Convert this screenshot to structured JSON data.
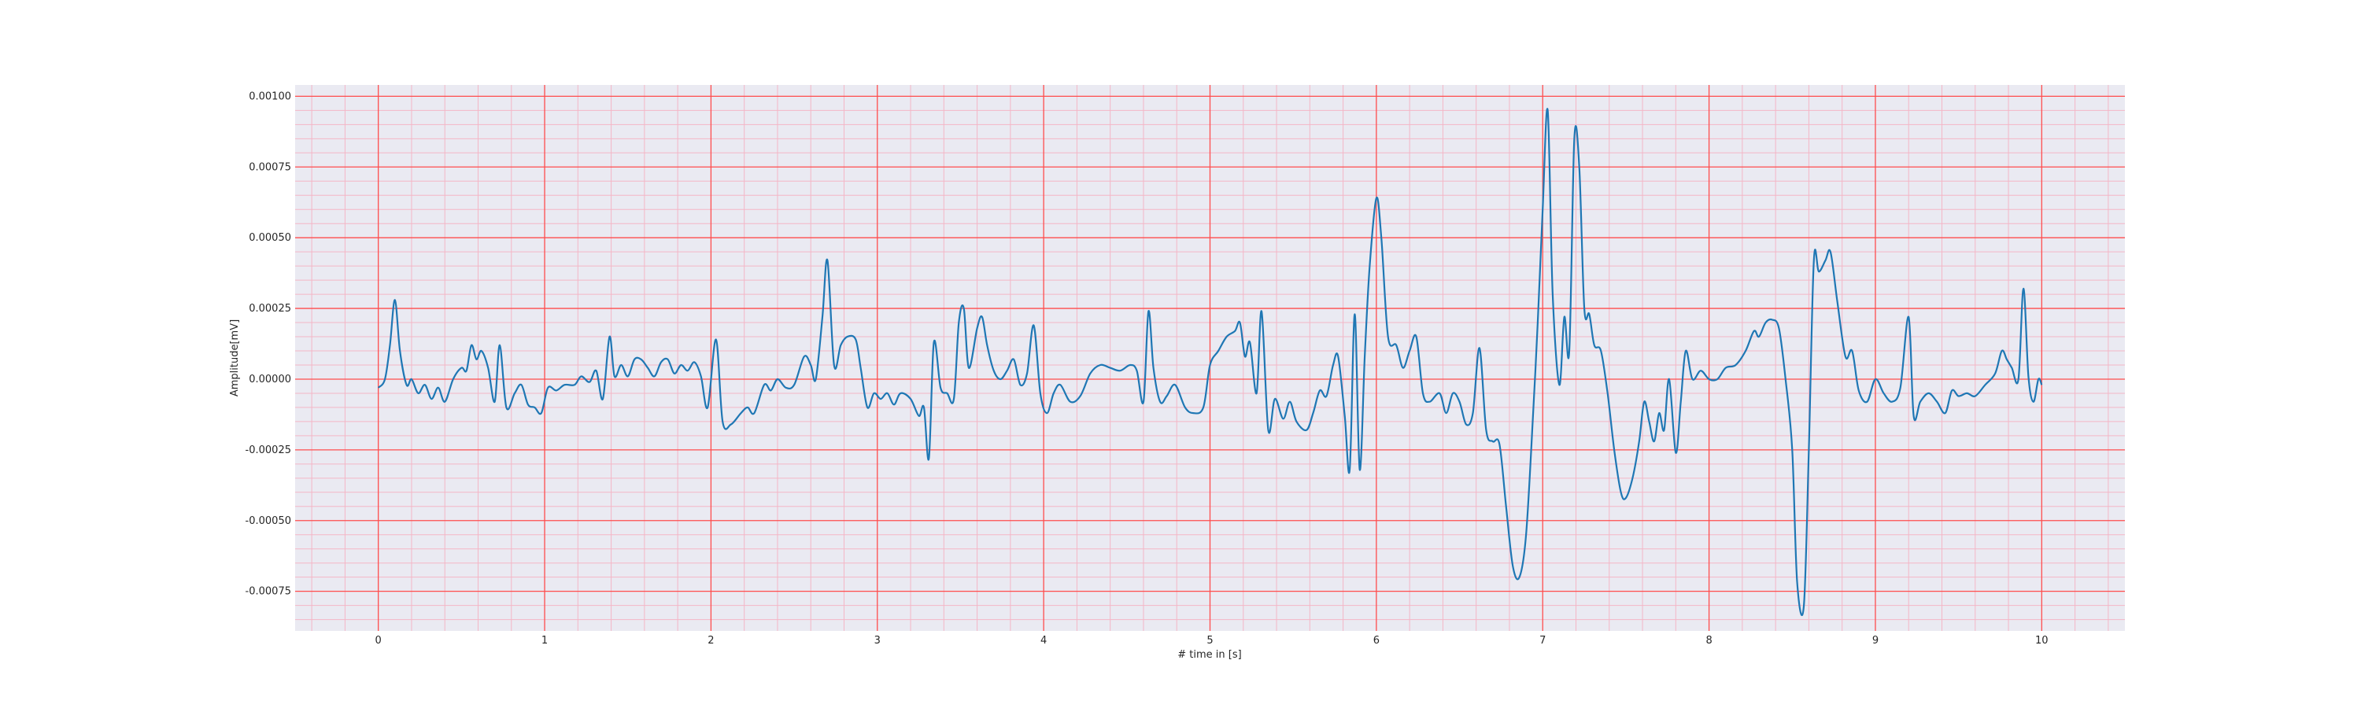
{
  "chart_data": {
    "type": "line",
    "title": "",
    "xlabel": "# time in [s]",
    "ylabel": "Amplitude[mV]",
    "xlim": [
      -0.5,
      10.5
    ],
    "ylim": [
      -0.00089,
      0.00104
    ],
    "x_ticks": [
      0,
      1,
      2,
      3,
      4,
      5,
      6,
      7,
      8,
      9,
      10
    ],
    "x_tick_labels": [
      "0",
      "1",
      "2",
      "3",
      "4",
      "5",
      "6",
      "7",
      "8",
      "9",
      "10"
    ],
    "y_ticks": [
      -0.00075,
      -0.0005,
      -0.00025,
      0.0,
      0.00025,
      0.0005,
      0.00075,
      0.001
    ],
    "y_tick_labels": [
      "-0.00075",
      "-0.00050",
      "-0.00025",
      "0.00000",
      "0.00025",
      "0.00050",
      "0.00075",
      "0.00100"
    ],
    "grid": {
      "major": true,
      "minor": true,
      "major_color": "#ff4d4d",
      "minor_color": "#f4b6c6"
    },
    "background": "#eaeaf2",
    "series": [
      {
        "color": "#1f77b4",
        "points": [
          [
            0.0,
            -3e-05
          ],
          [
            0.04,
            0.0
          ],
          [
            0.07,
            0.00012
          ],
          [
            0.1,
            0.00028
          ],
          [
            0.13,
            0.0001
          ],
          [
            0.17,
            -2e-05
          ],
          [
            0.2,
            0.0
          ],
          [
            0.24,
            -5e-05
          ],
          [
            0.28,
            -2e-05
          ],
          [
            0.32,
            -7e-05
          ],
          [
            0.36,
            -3e-05
          ],
          [
            0.4,
            -8e-05
          ],
          [
            0.45,
            0.0
          ],
          [
            0.5,
            4e-05
          ],
          [
            0.53,
            3e-05
          ],
          [
            0.56,
            0.00012
          ],
          [
            0.59,
            7e-05
          ],
          [
            0.62,
            0.0001
          ],
          [
            0.66,
            4e-05
          ],
          [
            0.7,
            -8e-05
          ],
          [
            0.73,
            0.00012
          ],
          [
            0.77,
            -0.0001
          ],
          [
            0.82,
            -5e-05
          ],
          [
            0.86,
            -2e-05
          ],
          [
            0.9,
            -9e-05
          ],
          [
            0.94,
            -0.0001
          ],
          [
            0.98,
            -0.00012
          ],
          [
            1.02,
            -3e-05
          ],
          [
            1.07,
            -4e-05
          ],
          [
            1.12,
            -2e-05
          ],
          [
            1.18,
            -2e-05
          ],
          [
            1.22,
            1e-05
          ],
          [
            1.27,
            -1e-05
          ],
          [
            1.31,
            3e-05
          ],
          [
            1.35,
            -7e-05
          ],
          [
            1.39,
            0.00015
          ],
          [
            1.42,
            1e-05
          ],
          [
            1.46,
            5e-05
          ],
          [
            1.5,
            1e-05
          ],
          [
            1.54,
            7e-05
          ],
          [
            1.58,
            7e-05
          ],
          [
            1.62,
            4e-05
          ],
          [
            1.66,
            1e-05
          ],
          [
            1.7,
            6e-05
          ],
          [
            1.74,
            7e-05
          ],
          [
            1.78,
            2e-05
          ],
          [
            1.82,
            5e-05
          ],
          [
            1.86,
            3e-05
          ],
          [
            1.9,
            6e-05
          ],
          [
            1.94,
            1e-05
          ],
          [
            1.98,
            -0.0001
          ],
          [
            2.03,
            0.00014
          ],
          [
            2.07,
            -0.00015
          ],
          [
            2.12,
            -0.00016
          ],
          [
            2.18,
            -0.00012
          ],
          [
            2.22,
            -0.0001
          ],
          [
            2.26,
            -0.00012
          ],
          [
            2.32,
            -2e-05
          ],
          [
            2.36,
            -4e-05
          ],
          [
            2.4,
            0.0
          ],
          [
            2.45,
            -3e-05
          ],
          [
            2.5,
            -2e-05
          ],
          [
            2.56,
            8e-05
          ],
          [
            2.6,
            5e-05
          ],
          [
            2.63,
            0.0
          ],
          [
            2.67,
            0.00022
          ],
          [
            2.7,
            0.00042
          ],
          [
            2.74,
            5e-05
          ],
          [
            2.78,
            0.00012
          ],
          [
            2.82,
            0.00015
          ],
          [
            2.87,
            0.00014
          ],
          [
            2.9,
            4e-05
          ],
          [
            2.94,
            -0.0001
          ],
          [
            2.98,
            -5e-05
          ],
          [
            3.02,
            -7e-05
          ],
          [
            3.06,
            -5e-05
          ],
          [
            3.1,
            -9e-05
          ],
          [
            3.14,
            -5e-05
          ],
          [
            3.2,
            -7e-05
          ],
          [
            3.25,
            -0.00013
          ],
          [
            3.28,
            -0.0001
          ],
          [
            3.31,
            -0.00028
          ],
          [
            3.34,
            0.00013
          ],
          [
            3.38,
            -3e-05
          ],
          [
            3.42,
            -5e-05
          ],
          [
            3.46,
            -7e-05
          ],
          [
            3.49,
            0.0002
          ],
          [
            3.52,
            0.00025
          ],
          [
            3.55,
            4e-05
          ],
          [
            3.6,
            0.00018
          ],
          [
            3.63,
            0.00022
          ],
          [
            3.66,
            0.00012
          ],
          [
            3.7,
            3e-05
          ],
          [
            3.74,
            0.0
          ],
          [
            3.78,
            3e-05
          ],
          [
            3.82,
            7e-05
          ],
          [
            3.86,
            -2e-05
          ],
          [
            3.9,
            2e-05
          ],
          [
            3.94,
            0.00019
          ],
          [
            3.98,
            -5e-05
          ],
          [
            4.02,
            -0.00012
          ],
          [
            4.06,
            -5e-05
          ],
          [
            4.1,
            -2e-05
          ],
          [
            4.16,
            -8e-05
          ],
          [
            4.22,
            -6e-05
          ],
          [
            4.28,
            2e-05
          ],
          [
            4.34,
            5e-05
          ],
          [
            4.4,
            4e-05
          ],
          [
            4.46,
            3e-05
          ],
          [
            4.52,
            5e-05
          ],
          [
            4.56,
            3e-05
          ],
          [
            4.6,
            -8e-05
          ],
          [
            4.63,
            0.00024
          ],
          [
            4.66,
            4e-05
          ],
          [
            4.7,
            -8e-05
          ],
          [
            4.74,
            -6e-05
          ],
          [
            4.79,
            -2e-05
          ],
          [
            4.85,
            -0.0001
          ],
          [
            4.9,
            -0.00012
          ],
          [
            4.96,
            -0.0001
          ],
          [
            5.0,
            5e-05
          ],
          [
            5.05,
            0.0001
          ],
          [
            5.1,
            0.00015
          ],
          [
            5.15,
            0.00017
          ],
          [
            5.18,
            0.0002
          ],
          [
            5.21,
            8e-05
          ],
          [
            5.24,
            0.00013
          ],
          [
            5.28,
            -5e-05
          ],
          [
            5.31,
            0.00024
          ],
          [
            5.35,
            -0.00018
          ],
          [
            5.39,
            -7e-05
          ],
          [
            5.44,
            -0.00014
          ],
          [
            5.48,
            -8e-05
          ],
          [
            5.52,
            -0.00015
          ],
          [
            5.58,
            -0.00018
          ],
          [
            5.62,
            -0.00012
          ],
          [
            5.66,
            -4e-05
          ],
          [
            5.7,
            -6e-05
          ],
          [
            5.74,
            5e-05
          ],
          [
            5.77,
            8e-05
          ],
          [
            5.81,
            -0.00013
          ],
          [
            5.84,
            -0.00032
          ],
          [
            5.87,
            0.00023
          ],
          [
            5.9,
            -0.00032
          ],
          [
            5.93,
            8e-05
          ],
          [
            5.96,
            0.0004
          ],
          [
            6.0,
            0.00064
          ],
          [
            6.03,
            0.0005
          ],
          [
            6.07,
            0.00015
          ],
          [
            6.12,
            0.00012
          ],
          [
            6.16,
            4e-05
          ],
          [
            6.2,
            0.0001
          ],
          [
            6.24,
            0.00015
          ],
          [
            6.28,
            -5e-05
          ],
          [
            6.32,
            -8e-05
          ],
          [
            6.38,
            -5e-05
          ],
          [
            6.42,
            -0.00012
          ],
          [
            6.46,
            -5e-05
          ],
          [
            6.5,
            -8e-05
          ],
          [
            6.54,
            -0.00016
          ],
          [
            6.58,
            -0.00012
          ],
          [
            6.62,
            0.00011
          ],
          [
            6.66,
            -0.00018
          ],
          [
            6.7,
            -0.00022
          ],
          [
            6.74,
            -0.00023
          ],
          [
            6.78,
            -0.00045
          ],
          [
            6.82,
            -0.00066
          ],
          [
            6.86,
            -0.0007
          ],
          [
            6.9,
            -0.00055
          ],
          [
            6.94,
            -0.00015
          ],
          [
            6.97,
            0.0002
          ],
          [
            7.0,
            0.0006
          ],
          [
            7.03,
            0.00095
          ],
          [
            7.06,
            0.0003
          ],
          [
            7.1,
            -2e-05
          ],
          [
            7.13,
            0.00022
          ],
          [
            7.16,
            0.0001
          ],
          [
            7.19,
            0.00085
          ],
          [
            7.22,
            0.00075
          ],
          [
            7.25,
            0.00025
          ],
          [
            7.28,
            0.00023
          ],
          [
            7.31,
            0.00012
          ],
          [
            7.35,
            0.0001
          ],
          [
            7.39,
            -5e-05
          ],
          [
            7.43,
            -0.00025
          ],
          [
            7.47,
            -0.0004
          ],
          [
            7.5,
            -0.00042
          ],
          [
            7.54,
            -0.00035
          ],
          [
            7.58,
            -0.00022
          ],
          [
            7.61,
            -8e-05
          ],
          [
            7.64,
            -0.00015
          ],
          [
            7.67,
            -0.00022
          ],
          [
            7.7,
            -0.00012
          ],
          [
            7.73,
            -0.00018
          ],
          [
            7.76,
            0.0
          ],
          [
            7.8,
            -0.00026
          ],
          [
            7.83,
            -8e-05
          ],
          [
            7.86,
            0.0001
          ],
          [
            7.9,
            0.0
          ],
          [
            7.95,
            3e-05
          ],
          [
            8.0,
            0.0
          ],
          [
            8.05,
            0.0
          ],
          [
            8.1,
            4e-05
          ],
          [
            8.16,
            5e-05
          ],
          [
            8.22,
            0.0001
          ],
          [
            8.27,
            0.00017
          ],
          [
            8.3,
            0.00015
          ],
          [
            8.34,
            0.0002
          ],
          [
            8.38,
            0.00021
          ],
          [
            8.42,
            0.00018
          ],
          [
            8.46,
            0.0
          ],
          [
            8.5,
            -0.00025
          ],
          [
            8.53,
            -0.00072
          ],
          [
            8.57,
            -0.0008
          ],
          [
            8.6,
            -0.00025
          ],
          [
            8.63,
            0.00042
          ],
          [
            8.66,
            0.00038
          ],
          [
            8.7,
            0.00042
          ],
          [
            8.73,
            0.00045
          ],
          [
            8.77,
            0.00028
          ],
          [
            8.82,
            8e-05
          ],
          [
            8.86,
            0.0001
          ],
          [
            8.9,
            -4e-05
          ],
          [
            8.95,
            -8e-05
          ],
          [
            9.0,
            0.0
          ],
          [
            9.05,
            -5e-05
          ],
          [
            9.1,
            -8e-05
          ],
          [
            9.15,
            -3e-05
          ],
          [
            9.2,
            0.00022
          ],
          [
            9.23,
            -0.00013
          ],
          [
            9.27,
            -8e-05
          ],
          [
            9.32,
            -5e-05
          ],
          [
            9.37,
            -8e-05
          ],
          [
            9.42,
            -0.00012
          ],
          [
            9.46,
            -4e-05
          ],
          [
            9.5,
            -6e-05
          ],
          [
            9.55,
            -5e-05
          ],
          [
            9.6,
            -6e-05
          ],
          [
            9.66,
            -2e-05
          ],
          [
            9.72,
            2e-05
          ],
          [
            9.76,
            0.0001
          ],
          [
            9.79,
            7e-05
          ],
          [
            9.82,
            4e-05
          ],
          [
            9.86,
            0.0
          ],
          [
            9.89,
            0.00032
          ],
          [
            9.92,
            1e-05
          ],
          [
            9.95,
            -8e-05
          ],
          [
            9.98,
            0.0
          ],
          [
            10.0,
            -2e-05
          ]
        ]
      }
    ]
  }
}
